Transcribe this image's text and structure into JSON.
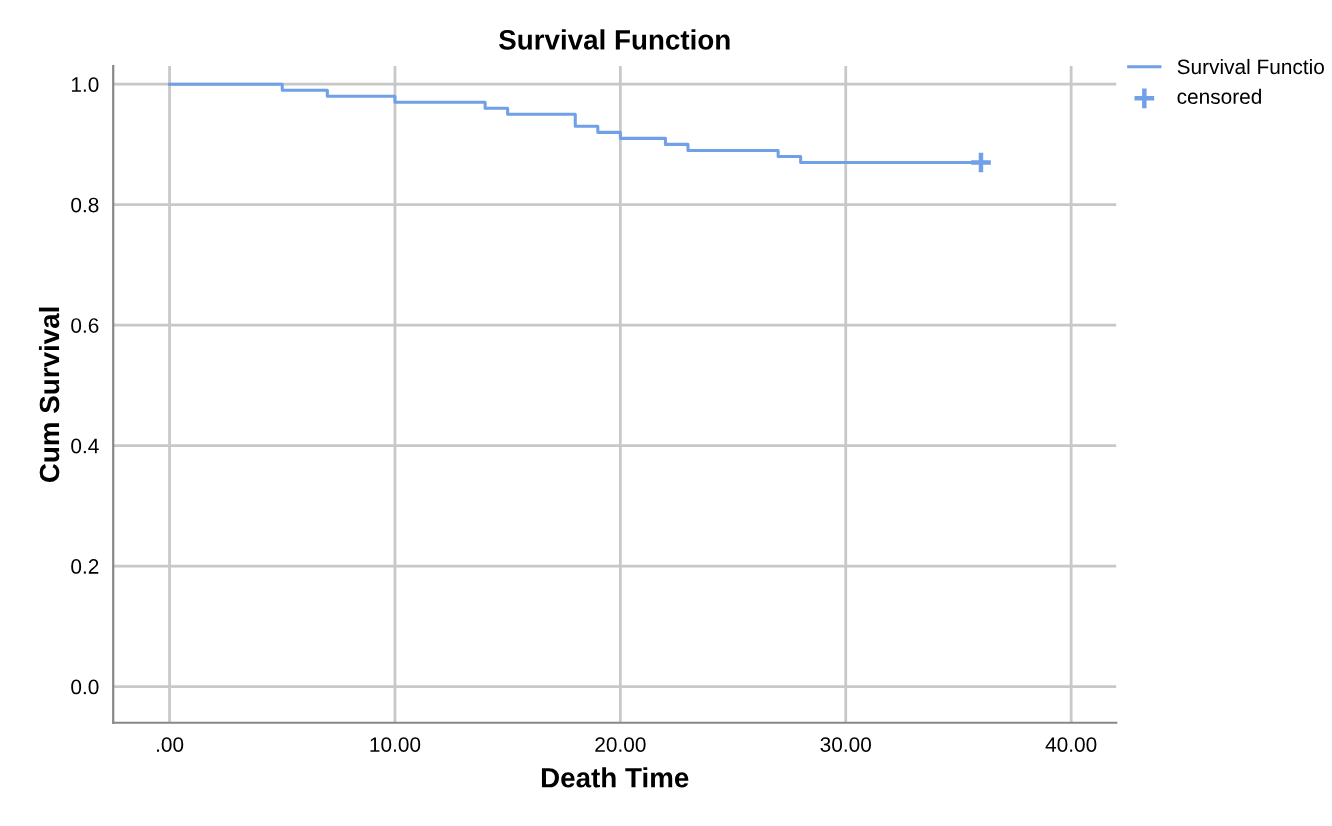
{
  "chart_data": {
    "type": "step",
    "title": "Survival Function",
    "xlabel": "Death Time",
    "ylabel": "Cum Survival",
    "series": [
      {
        "name": "Survival Functio",
        "color": "#6fa0e8",
        "x": [
          0,
          5,
          7,
          10,
          14,
          15,
          18,
          19,
          20,
          22,
          23,
          27,
          28,
          36
        ],
        "values": [
          1.0,
          0.99,
          0.98,
          0.97,
          0.96,
          0.95,
          0.93,
          0.92,
          0.91,
          0.9,
          0.89,
          0.88,
          0.87,
          0.87
        ]
      },
      {
        "name": "censored",
        "type": "scatter",
        "marker": "cross",
        "color": "#6fa0e8",
        "x": [
          36
        ],
        "values": [
          0.87
        ]
      }
    ],
    "xlim": [
      -2.5,
      42
    ],
    "ylim": [
      -0.06,
      1.03
    ],
    "xticks": [
      {
        "value": 0,
        "label": ".00"
      },
      {
        "value": 10,
        "label": "10.00"
      },
      {
        "value": 20,
        "label": "20.00"
      },
      {
        "value": 30,
        "label": "30.00"
      },
      {
        "value": 40,
        "label": "40.00"
      }
    ],
    "yticks": [
      {
        "value": 0,
        "label": "0.0"
      },
      {
        "value": 0.2,
        "label": "0.2"
      },
      {
        "value": 0.4,
        "label": "0.4"
      },
      {
        "value": 0.6,
        "label": "0.6"
      },
      {
        "value": 0.8,
        "label": "0.8"
      },
      {
        "value": 1.0,
        "label": "1.0"
      }
    ],
    "grid": true,
    "legend": "top right"
  }
}
